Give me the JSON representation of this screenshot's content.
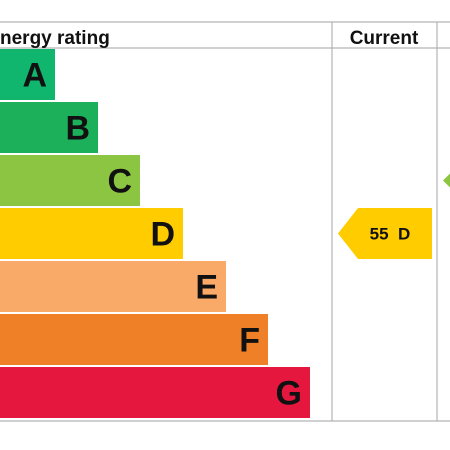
{
  "header": {
    "title": "nergy rating",
    "current_label": "Current"
  },
  "colors": {
    "A": "#10b56e",
    "B": "#1cb05a",
    "C": "#8cc541",
    "D": "#ffcc00",
    "E": "#f9aa68",
    "F": "#ef8027",
    "G": "#e5173f",
    "rating_letter": "#111111",
    "grid": "#b3b3b3",
    "potential_arrow": "#8cc541"
  },
  "chart_data": {
    "type": "bar",
    "categories": [
      "A",
      "B",
      "C",
      "D",
      "E",
      "F",
      "G"
    ],
    "bands": [
      {
        "letter": "A",
        "min": 92,
        "max": 100
      },
      {
        "letter": "B",
        "min": 81,
        "max": 91
      },
      {
        "letter": "C",
        "min": 69,
        "max": 80
      },
      {
        "letter": "D",
        "min": 55,
        "max": 68
      },
      {
        "letter": "E",
        "min": 39,
        "max": 54
      },
      {
        "letter": "F",
        "min": 21,
        "max": 38
      },
      {
        "letter": "G",
        "min": 1,
        "max": 20
      }
    ],
    "current": {
      "score": 55,
      "band": "D",
      "label": "55  D"
    },
    "potential": {
      "band": "C"
    }
  }
}
